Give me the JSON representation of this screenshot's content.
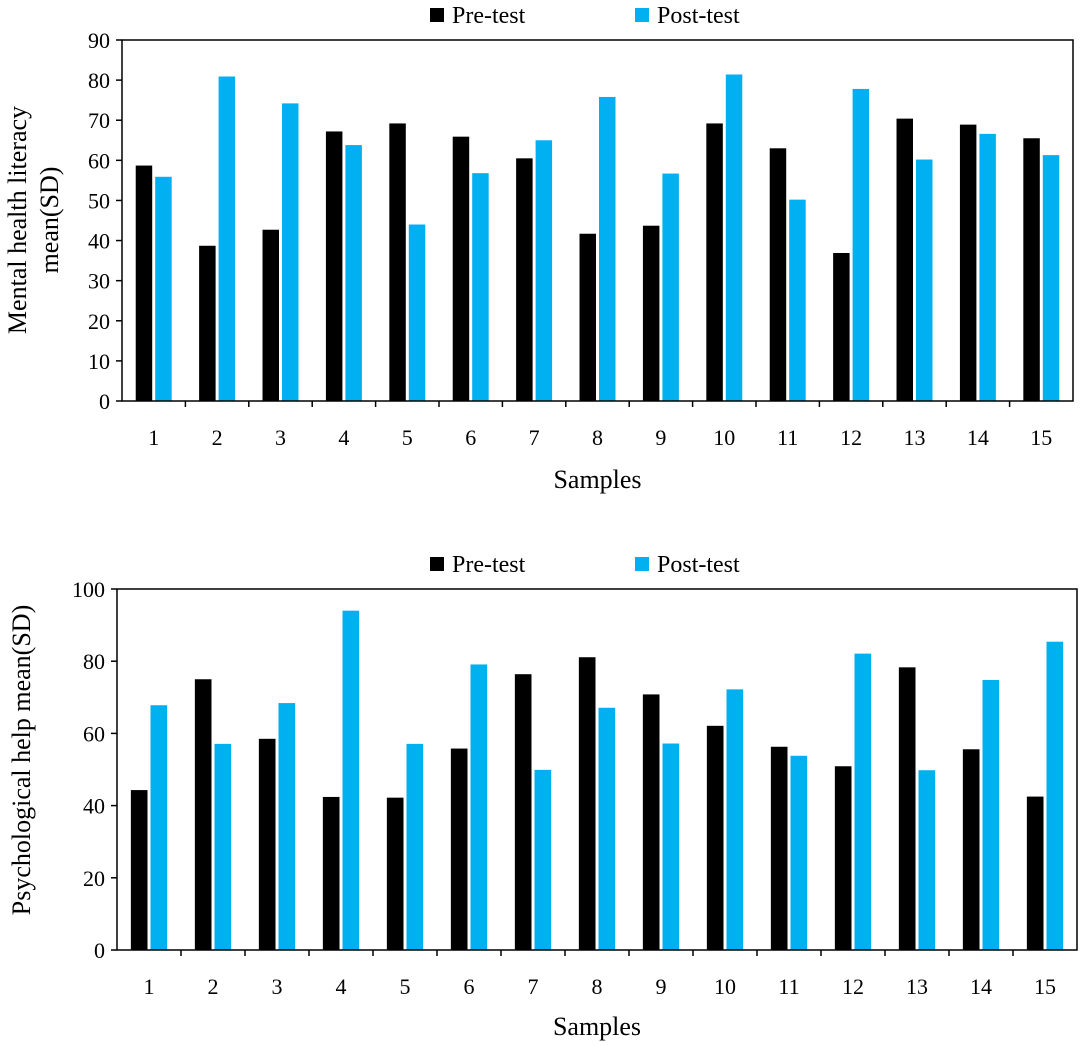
{
  "chart_data": [
    {
      "type": "bar",
      "title": "",
      "xlabel": "Samples",
      "ylabel_lines": [
        "Mental health literacy",
        "mean(SD)"
      ],
      "ylim": [
        0,
        90
      ],
      "ytick_step": 10,
      "yticks": [
        "0",
        "10",
        "20",
        "30",
        "40",
        "50",
        "60",
        "70",
        "80",
        "90"
      ],
      "legend_position": "top",
      "categories": [
        "1",
        "2",
        "3",
        "4",
        "5",
        "6",
        "7",
        "8",
        "9",
        "10",
        "11",
        "12",
        "13",
        "14",
        "15"
      ],
      "series": [
        {
          "name": "Pre-test",
          "color": "#000000",
          "values": [
            58.7,
            38.7,
            42.7,
            67.2,
            69.2,
            65.9,
            60.5,
            41.7,
            43.7,
            69.2,
            63.0,
            36.9,
            70.4,
            68.9,
            65.5
          ]
        },
        {
          "name": "Post-test",
          "color": "#00b0f0",
          "values": [
            55.9,
            80.9,
            74.2,
            63.8,
            44.0,
            56.8,
            65.0,
            75.8,
            56.7,
            81.4,
            50.2,
            77.8,
            60.2,
            66.6,
            61.3
          ]
        }
      ]
    },
    {
      "type": "bar",
      "title": "",
      "xlabel": "Samples",
      "ylabel_lines": [
        "Psychological help mean(SD)"
      ],
      "ylim": [
        0,
        100
      ],
      "ytick_step": 20,
      "yticks": [
        "0",
        "20",
        "40",
        "60",
        "80",
        "100"
      ],
      "legend_position": "top",
      "categories": [
        "1",
        "2",
        "3",
        "4",
        "5",
        "6",
        "7",
        "8",
        "9",
        "10",
        "11",
        "12",
        "13",
        "14",
        "15"
      ],
      "series": [
        {
          "name": "Pre-test",
          "color": "#000000",
          "values": [
            44.3,
            75.0,
            58.5,
            42.4,
            42.2,
            55.8,
            76.4,
            81.1,
            70.8,
            62.1,
            56.3,
            50.9,
            78.3,
            55.6,
            42.5
          ]
        },
        {
          "name": "Post-test",
          "color": "#00b0f0",
          "values": [
            67.8,
            57.1,
            68.4,
            94.0,
            57.1,
            79.1,
            49.9,
            67.1,
            57.2,
            72.2,
            53.8,
            82.1,
            49.8,
            74.8,
            85.4
          ]
        }
      ]
    }
  ]
}
